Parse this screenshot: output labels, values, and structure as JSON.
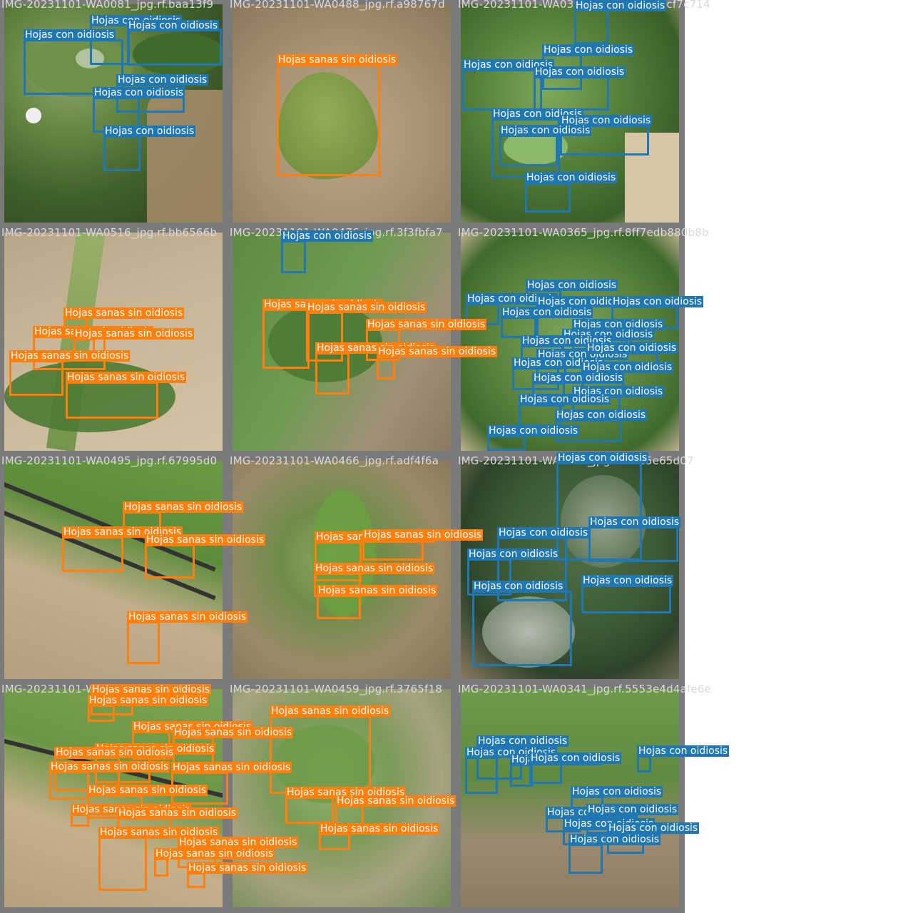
{
  "labels": {
    "con": "Hojas con oidiosis",
    "sanas": "Hojas sanas sin oidiosis"
  },
  "colors": {
    "con": "#1f77b4",
    "sanas": "#ff7f0e",
    "frame": "#7a7a7a",
    "caption": "#d9d9d9"
  },
  "tiles": [
    {
      "caption": "IMG-20231101-WA0081_jpg.rf.baa13f9"
    },
    {
      "caption": "IMG-20231101-WA0488_jpg.rf.a98767d"
    },
    {
      "caption": "IMG-20231101-WA0379_jpg.rf.d79b3dcf7c714"
    },
    {
      "caption": "IMG-20231101-WA0516_jpg.rf.bb6566b"
    },
    {
      "caption": "IMG-20231101-WA0476_jpg.rf.3f3fbfa7"
    },
    {
      "caption": "IMG-20231101-WA0365_jpg.rf.8ff7edb880b8b"
    },
    {
      "caption": "IMG-20231101-WA0495_jpg.rf.67995d0"
    },
    {
      "caption": "IMG-20231101-WA0466_jpg.rf.adf4f6a"
    },
    {
      "caption": "IMG-20231101-WA0398_jpg.rf.b9e5e65d07"
    },
    {
      "caption": "IMG-20231101-WA0497_jpg.rf.59804"
    },
    {
      "caption": "IMG-20231101-WA0459_jpg.rf.3765f18"
    },
    {
      "caption": "IMG-20231101-WA0341_jpg.rf.5553e4d4afe6e"
    }
  ]
}
